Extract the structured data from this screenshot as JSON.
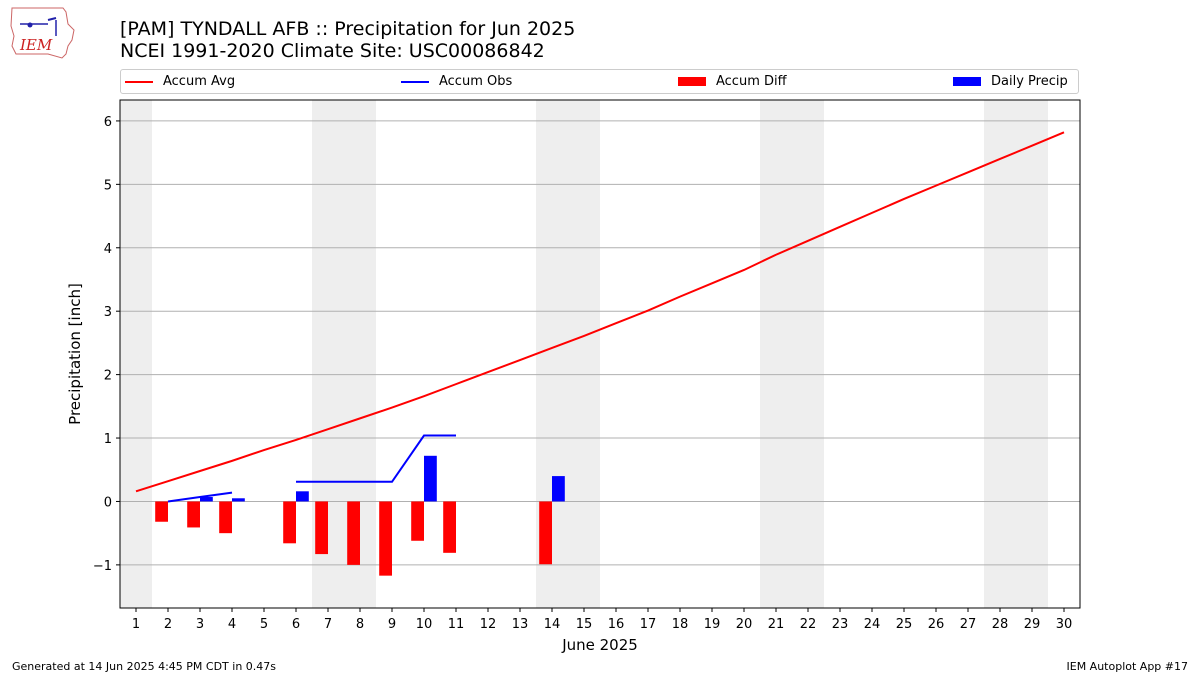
{
  "header": {
    "title_line1": "[PAM] TYNDALL AFB :: Precipitation for Jun 2025",
    "title_line2": "NCEI 1991-2020 Climate Site: USC00086842",
    "logo_text": "IEM"
  },
  "legend": {
    "accum_avg": "Accum Avg",
    "accum_obs": "Accum Obs",
    "accum_diff": "Accum Diff",
    "daily_precip": "Daily Precip"
  },
  "footer": {
    "generated": "Generated at 14 Jun 2025 4:45 PM CDT in 0.47s",
    "app": "IEM Autoplot App #17"
  },
  "colors": {
    "accum_avg": "#ff0000",
    "accum_obs": "#0000ff",
    "accum_diff": "#ff0000",
    "daily_precip": "#0000ff",
    "weekend_shade": "#eeeeee",
    "grid": "#b0b0b0"
  },
  "chart_data": {
    "type": "bar",
    "xlabel": "June 2025",
    "ylabel": "Precipitation [inch]",
    "xlim": [
      0.5,
      30.5
    ],
    "ylim": [
      -1.68,
      6.33
    ],
    "x_ticks": [
      1,
      2,
      3,
      4,
      5,
      6,
      7,
      8,
      9,
      10,
      11,
      12,
      13,
      14,
      15,
      16,
      17,
      18,
      19,
      20,
      21,
      22,
      23,
      24,
      25,
      26,
      27,
      28,
      29,
      30
    ],
    "y_ticks": [
      -1,
      0,
      1,
      2,
      3,
      4,
      5,
      6
    ],
    "y_tick_labels": [
      "−1",
      "0",
      "1",
      "2",
      "3",
      "4",
      "5",
      "6"
    ],
    "grid": "horizontal",
    "legend_position": "top",
    "weekend_shading_days": [
      [
        0.5,
        1.5
      ],
      [
        6.5,
        8.5
      ],
      [
        13.5,
        15.5
      ],
      [
        20.5,
        22.5
      ],
      [
        27.5,
        29.5
      ]
    ],
    "series": [
      {
        "name": "Accum Avg",
        "kind": "line",
        "x": [
          1,
          2,
          3,
          4,
          5,
          6,
          7,
          8,
          9,
          10,
          11,
          12,
          13,
          14,
          15,
          16,
          17,
          18,
          19,
          20,
          21,
          22,
          23,
          24,
          25,
          26,
          27,
          28,
          29,
          30
        ],
        "values": [
          0.16,
          0.32,
          0.48,
          0.64,
          0.81,
          0.97,
          1.14,
          1.31,
          1.48,
          1.66,
          1.85,
          2.04,
          2.23,
          2.42,
          2.61,
          2.81,
          3.01,
          3.23,
          3.44,
          3.65,
          3.89,
          4.11,
          4.33,
          4.55,
          4.77,
          4.98,
          5.19,
          5.4,
          5.61,
          5.82
        ]
      },
      {
        "name": "Accum Obs",
        "kind": "line",
        "x": [
          2,
          3,
          4,
          null,
          6,
          7,
          8,
          9,
          10,
          11
        ],
        "values": [
          0.0,
          0.07,
          0.14,
          null,
          0.31,
          0.31,
          0.31,
          0.31,
          1.04,
          1.04
        ]
      },
      {
        "name": "Accum Diff",
        "kind": "bar",
        "offset": -0.2,
        "x": [
          2,
          3,
          4,
          6,
          7,
          8,
          9,
          10,
          11,
          14
        ],
        "values": [
          -0.32,
          -0.41,
          -0.5,
          -0.66,
          -0.83,
          -1.0,
          -1.17,
          -0.62,
          -0.81,
          -0.99
        ]
      },
      {
        "name": "Daily Precip",
        "kind": "bar",
        "offset": 0.2,
        "x": [
          3,
          4,
          6,
          10,
          14
        ],
        "values": [
          0.07,
          0.05,
          0.16,
          0.72,
          0.4
        ]
      }
    ]
  }
}
